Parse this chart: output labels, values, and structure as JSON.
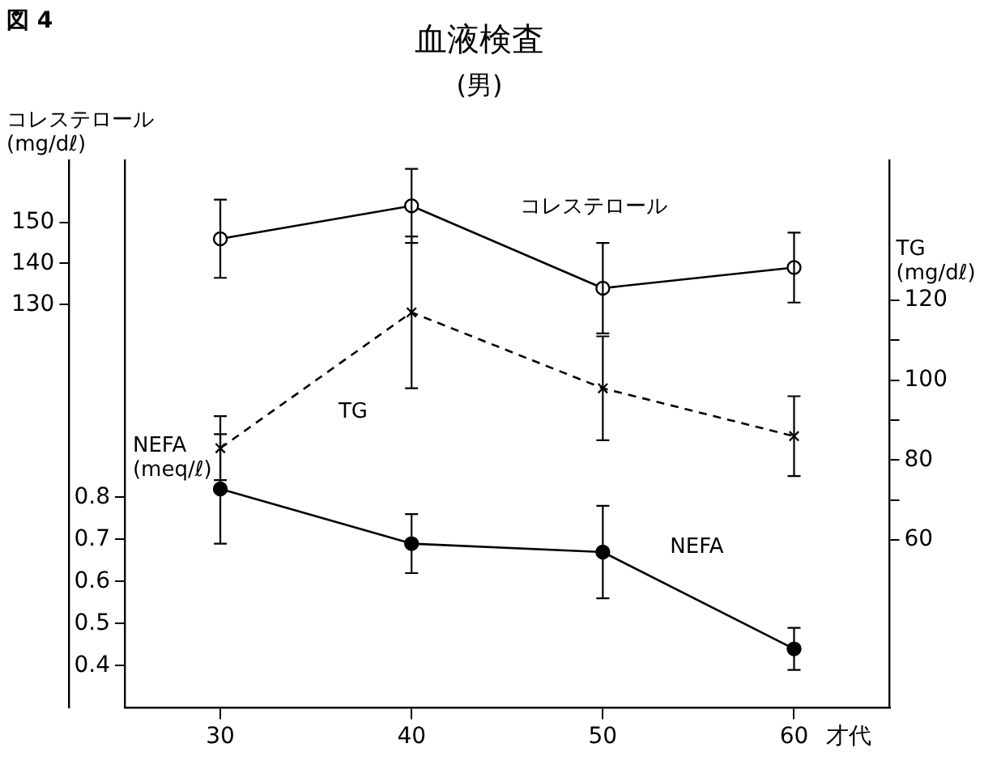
{
  "chart_data": {
    "type": "line",
    "title": "血液検査",
    "subtitle": "(男)",
    "xlabel": "才代",
    "ylabel": "コレステロール (mg/dℓ)",
    "y2label": "TG (mg/dℓ)",
    "y3label": "NEFA (meq/ℓ)",
    "annotations": [
      "図 4"
    ],
    "categories": [
      "30",
      "40",
      "50",
      "60"
    ],
    "series": [
      {
        "name": "コレステロール",
        "color": "#000000",
        "values": [
          146,
          154,
          134,
          139
        ],
        "errors": [
          9.5,
          9,
          11,
          8.5
        ],
        "marker": "circle",
        "line_style": "solid"
      },
      {
        "name": "TG",
        "color": "#000000",
        "axis": "y2",
        "values": [
          83,
          117,
          98,
          86
        ],
        "errors": [
          8,
          19,
          13,
          10
        ],
        "marker": "cross",
        "line_style": "dashed"
      },
      {
        "name": "NEFA",
        "color": "#000000",
        "axis": "y3",
        "values": [
          0.82,
          0.69,
          0.67,
          0.44
        ],
        "errors": [
          0.13,
          0.07,
          0.11,
          0.05
        ],
        "marker": "circle",
        "line_style": "solid"
      }
    ],
    "ylim": [
      32,
      165
    ],
    "yticks": [
      130,
      140,
      150
    ],
    "y2lim": [
      18,
      155
    ],
    "y2ticks": [
      60,
      {
        "value": 70,
        "label": null
      },
      80,
      {
        "value": 90,
        "label": null
      },
      100,
      {
        "value": 110,
        "label": null
      },
      120
    ],
    "y3lim": [
      0.3,
      1.6
    ],
    "y3ticks": [
      0.4,
      0.5,
      0.6,
      0.7,
      0.8
    ],
    "grid": false,
    "legend": false
  }
}
